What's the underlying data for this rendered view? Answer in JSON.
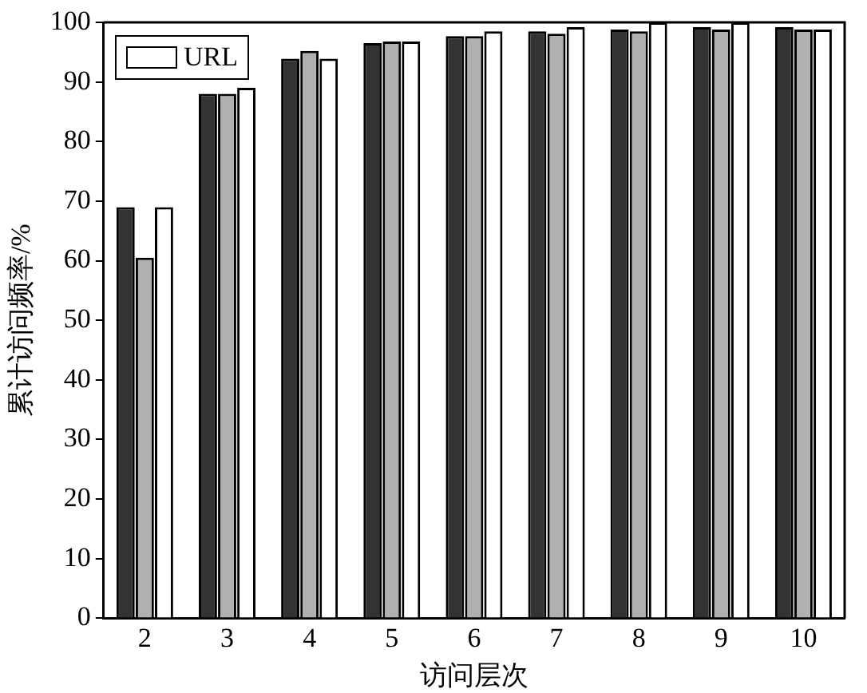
{
  "chart_data": {
    "type": "bar",
    "xlabel": "访问层次",
    "ylabel": "累计访问频率/%",
    "categories": [
      "2",
      "3",
      "4",
      "5",
      "6",
      "7",
      "8",
      "9",
      "10"
    ],
    "series": [
      {
        "color": "#333333",
        "values": [
          69,
          88,
          93.9,
          96.5,
          97.7,
          98.5,
          98.8,
          99.2,
          99.2
        ]
      },
      {
        "color": "#b0b0b0",
        "values": [
          60.5,
          88,
          95.2,
          96.8,
          97.7,
          98.1,
          98.5,
          98.8,
          98.8
        ]
      },
      {
        "name": "URL",
        "color": "#ffffff",
        "values": [
          69,
          89,
          93.9,
          96.8,
          98.5,
          99.2,
          100,
          100,
          98.8
        ]
      }
    ],
    "ylim": [
      0,
      100
    ],
    "yticks": [
      0,
      10,
      20,
      30,
      40,
      50,
      60,
      70,
      80,
      90,
      100
    ],
    "grid": false,
    "legend": "top left"
  }
}
